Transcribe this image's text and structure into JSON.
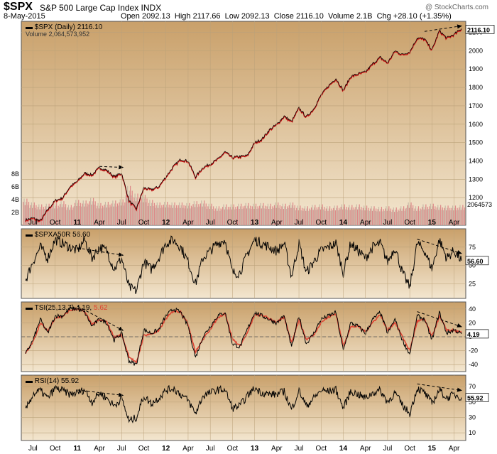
{
  "header": {
    "symbol": "$SPX",
    "name": "S&P 500 Large Cap Index INDX",
    "date": "8-May-2015",
    "open_label": "Open",
    "open": "2092.13",
    "high_label": "High",
    "high": "2117.66",
    "low_label": "Low",
    "low": "2092.13",
    "close_label": "Close",
    "close": "2116.10",
    "volume_label": "Volume",
    "volume": "2.1B",
    "chg_label": "Chg",
    "chg": "+28.10 (+1.35%)",
    "brand": "@ StockCharts.com"
  },
  "chart_data": [
    {
      "type": "line",
      "panel": "price",
      "legend": "$SPX (Daily) 2116.10",
      "volume_legend": "Volume 2,064,573,952",
      "last_value_label": "2116.10",
      "volume_last_label": "2064573",
      "yticks": [
        "2100",
        "2000",
        "1900",
        "1800",
        "1700",
        "1600",
        "1500",
        "1400",
        "1300",
        "1200"
      ],
      "ylim": [
        1050,
        2160
      ],
      "volume_ticks": [
        "8B",
        "6B",
        "4B",
        "2B"
      ],
      "volume_lim": [
        0,
        10
      ],
      "x": [
        "2010-06",
        "2010-07",
        "2010-08",
        "2010-09",
        "2010-10",
        "2010-11",
        "2010-12",
        "2011-01",
        "2011-02",
        "2011-03",
        "2011-04",
        "2011-05",
        "2011-06",
        "2011-07",
        "2011-08",
        "2011-09",
        "2011-10",
        "2011-11",
        "2011-12",
        "2012-01",
        "2012-02",
        "2012-03",
        "2012-04",
        "2012-05",
        "2012-06",
        "2012-07",
        "2012-08",
        "2012-09",
        "2012-10",
        "2012-11",
        "2012-12",
        "2013-01",
        "2013-02",
        "2013-03",
        "2013-04",
        "2013-05",
        "2013-06",
        "2013-07",
        "2013-08",
        "2013-09",
        "2013-10",
        "2013-11",
        "2013-12",
        "2014-01",
        "2014-02",
        "2014-03",
        "2014-04",
        "2014-05",
        "2014-06",
        "2014-07",
        "2014-08",
        "2014-09",
        "2014-10",
        "2014-11",
        "2014-12",
        "2015-01",
        "2015-02",
        "2015-03",
        "2015-04",
        "2015-05"
      ],
      "values": [
        1075,
        1085,
        1070,
        1130,
        1180,
        1195,
        1255,
        1285,
        1330,
        1320,
        1360,
        1345,
        1310,
        1330,
        1180,
        1135,
        1250,
        1240,
        1255,
        1310,
        1365,
        1405,
        1395,
        1310,
        1360,
        1380,
        1405,
        1445,
        1415,
        1420,
        1425,
        1495,
        1515,
        1565,
        1595,
        1640,
        1610,
        1685,
        1635,
        1680,
        1755,
        1805,
        1845,
        1780,
        1855,
        1870,
        1880,
        1925,
        1960,
        1930,
        1995,
        1975,
        1990,
        2065,
        2060,
        2000,
        2105,
        2065,
        2085,
        2116
      ],
      "volume_values": [
        4.2,
        3.6,
        3.3,
        3.4,
        3.5,
        3.8,
        3.2,
        4.0,
        3.9,
        4.3,
        3.5,
        3.7,
        3.9,
        4.1,
        6.2,
        5.0,
        4.8,
        4.0,
        3.6,
        3.7,
        3.6,
        3.6,
        3.5,
        3.8,
        3.9,
        3.4,
        3.0,
        3.3,
        3.3,
        3.4,
        3.5,
        3.4,
        3.5,
        3.4,
        3.6,
        3.4,
        3.6,
        3.1,
        3.0,
        3.2,
        3.3,
        3.0,
        3.1,
        3.3,
        3.2,
        3.3,
        3.1,
        3.0,
        2.9,
        3.0,
        2.8,
        3.0,
        3.6,
        3.0,
        3.3,
        3.4,
        3.2,
        3.1,
        3.1,
        3.2
      ]
    },
    {
      "type": "line",
      "panel": "indicator",
      "legend": "$SPXA50R 56.60",
      "last_value_label": "56.60",
      "yticks": [
        "75",
        "50",
        "25"
      ],
      "ylim": [
        5,
        100
      ],
      "values": [
        30,
        55,
        75,
        60,
        85,
        80,
        75,
        70,
        85,
        60,
        75,
        70,
        45,
        60,
        20,
        15,
        55,
        45,
        60,
        80,
        85,
        75,
        55,
        25,
        60,
        70,
        80,
        85,
        40,
        40,
        65,
        85,
        80,
        75,
        70,
        80,
        35,
        80,
        40,
        55,
        70,
        75,
        80,
        40,
        80,
        70,
        60,
        75,
        80,
        55,
        75,
        40,
        20,
        80,
        70,
        45,
        85,
        60,
        70,
        56.6
      ]
    },
    {
      "type": "line",
      "panel": "indicator",
      "legend": "TSI(25,13,7) 4.19, 5.62",
      "legend_signal": "5.62",
      "last_value_label": "4.19",
      "yticks": [
        "40",
        "20",
        "0",
        "-20",
        "-40"
      ],
      "ylim": [
        -50,
        50
      ],
      "values": [
        -25,
        -5,
        25,
        5,
        30,
        30,
        40,
        40,
        35,
        15,
        25,
        20,
        -5,
        5,
        -35,
        -40,
        10,
        5,
        10,
        30,
        40,
        35,
        15,
        -30,
        0,
        15,
        30,
        35,
        -10,
        -15,
        10,
        35,
        30,
        25,
        20,
        30,
        -15,
        30,
        -10,
        5,
        25,
        30,
        35,
        -20,
        20,
        15,
        5,
        25,
        35,
        5,
        25,
        -5,
        -25,
        30,
        25,
        -5,
        35,
        5,
        10,
        4.19
      ],
      "signal_values": [
        -24,
        -8,
        20,
        8,
        27,
        29,
        38,
        40,
        36,
        18,
        24,
        21,
        -1,
        3,
        -28,
        -38,
        2,
        4,
        8,
        26,
        37,
        36,
        18,
        -22,
        -4,
        11,
        27,
        34,
        -3,
        -13,
        5,
        31,
        31,
        26,
        21,
        28,
        -8,
        24,
        -4,
        2,
        21,
        28,
        33,
        -13,
        14,
        15,
        7,
        21,
        32,
        9,
        21,
        0,
        -20,
        22,
        25,
        0,
        29,
        10,
        9,
        5.62
      ]
    },
    {
      "type": "line",
      "panel": "indicator",
      "legend": "RSI(14) 55.92",
      "last_value_label": "55.92",
      "yticks": [
        "70",
        "50",
        "30",
        "10"
      ],
      "ylim": [
        0,
        85
      ],
      "values": [
        40,
        60,
        65,
        55,
        68,
        65,
        60,
        62,
        66,
        50,
        62,
        55,
        45,
        55,
        25,
        30,
        58,
        48,
        55,
        65,
        68,
        60,
        52,
        35,
        58,
        62,
        66,
        66,
        42,
        45,
        58,
        68,
        62,
        60,
        60,
        64,
        40,
        65,
        45,
        55,
        65,
        64,
        66,
        42,
        64,
        60,
        55,
        62,
        65,
        50,
        62,
        46,
        35,
        68,
        62,
        48,
        66,
        55,
        60,
        55.92
      ]
    }
  ],
  "x_axis_labels": [
    "Jul",
    "Oct",
    "11",
    "Apr",
    "Jul",
    "Oct",
    "12",
    "Apr",
    "Jul",
    "Oct",
    "13",
    "Apr",
    "Jul",
    "Oct",
    "14",
    "Apr",
    "Jul",
    "Oct",
    "15",
    "Apr"
  ]
}
